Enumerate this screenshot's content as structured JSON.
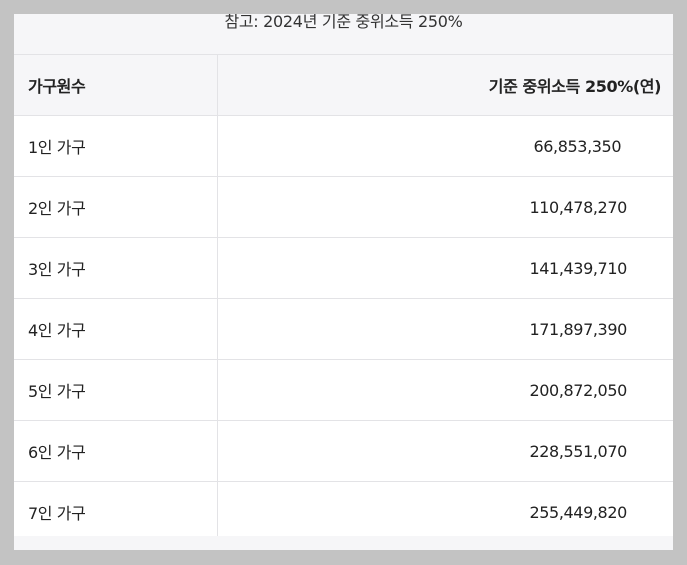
{
  "caption": "참고: 2024년 기준 중위소득 250%",
  "table": {
    "headers": [
      "가구원수",
      "기준 중위소득 250%(연)"
    ],
    "rows": [
      {
        "household": "1인 가구",
        "value": "66,853,350"
      },
      {
        "household": "2인 가구",
        "value": "110,478,270"
      },
      {
        "household": "3인 가구",
        "value": "141,439,710"
      },
      {
        "household": "4인 가구",
        "value": "171,897,390"
      },
      {
        "household": "5인 가구",
        "value": "200,872,050"
      },
      {
        "household": "6인 가구",
        "value": "228,551,070"
      },
      {
        "household": "7인 가구",
        "value": "255,449,820"
      }
    ]
  }
}
